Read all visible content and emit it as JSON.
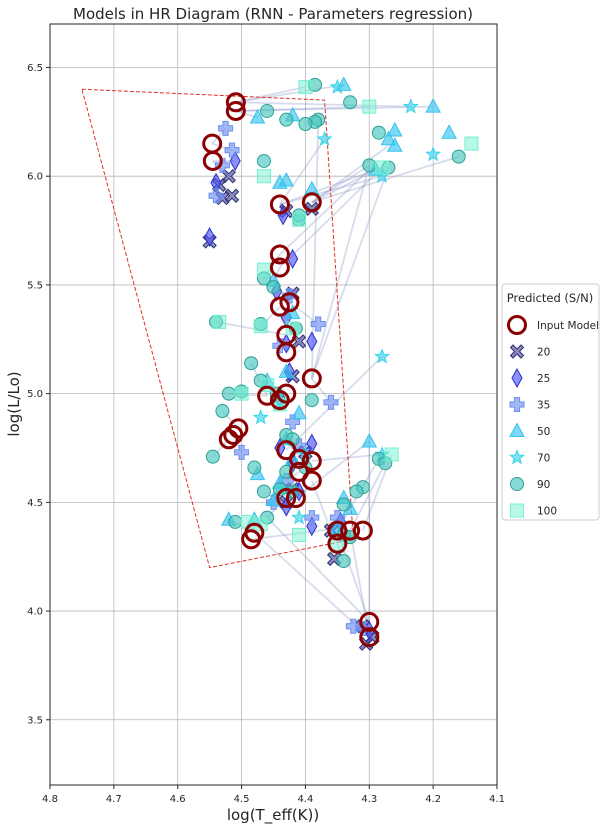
{
  "chart_data": {
    "type": "scatter",
    "title": "Models in HR Diagram (RNN - Parameters regression)",
    "xlabel": "log(T_eff(K))",
    "ylabel": "log(L/Lo)",
    "xlim": [
      4.8,
      4.1
    ],
    "ylim": [
      3.2,
      6.7
    ],
    "xticks": [
      "4.8",
      "4.7",
      "4.6",
      "4.5",
      "4.4",
      "4.3",
      "4.2",
      "4.1"
    ],
    "xtick_values": [
      4.8,
      4.7,
      4.6,
      4.5,
      4.4,
      4.3,
      4.2,
      4.1
    ],
    "yticks": [
      "3.5",
      "4.0",
      "4.5",
      "5.0",
      "5.5",
      "6.0",
      "6.5"
    ],
    "ytick_values": [
      3.5,
      4.0,
      4.5,
      5.0,
      5.5,
      6.0,
      6.5
    ],
    "grid": true,
    "legend": {
      "title": "Predicted (S/N)",
      "placement": "right, outside",
      "entries": [
        "Input Model",
        "20",
        "25",
        "35",
        "50",
        "70",
        "90",
        "100"
      ]
    },
    "boundary_polygon": [
      [
        4.75,
        6.4
      ],
      [
        4.37,
        6.35
      ],
      [
        4.325,
        4.33
      ],
      [
        4.55,
        4.2
      ]
    ],
    "input_models": [
      [
        4.509,
        6.34
      ],
      [
        4.509,
        6.3
      ],
      [
        4.546,
        6.15
      ],
      [
        4.545,
        6.07
      ],
      [
        4.44,
        5.87
      ],
      [
        4.39,
        5.88
      ],
      [
        4.44,
        5.64
      ],
      [
        4.44,
        5.58
      ],
      [
        4.425,
        5.42
      ],
      [
        4.44,
        5.4
      ],
      [
        4.43,
        5.27
      ],
      [
        4.43,
        5.19
      ],
      [
        4.39,
        5.07
      ],
      [
        4.46,
        4.99
      ],
      [
        4.43,
        5.0
      ],
      [
        4.44,
        4.97
      ],
      [
        4.505,
        4.84
      ],
      [
        4.513,
        4.81
      ],
      [
        4.52,
        4.79
      ],
      [
        4.43,
        4.74
      ],
      [
        4.41,
        4.7
      ],
      [
        4.39,
        4.69
      ],
      [
        4.41,
        4.64
      ],
      [
        4.39,
        4.6
      ],
      [
        4.43,
        4.52
      ],
      [
        4.415,
        4.52
      ],
      [
        4.48,
        4.36
      ],
      [
        4.485,
        4.33
      ],
      [
        4.35,
        4.37
      ],
      [
        4.33,
        4.37
      ],
      [
        4.31,
        4.37
      ],
      [
        4.35,
        4.31
      ],
      [
        4.3,
        3.95
      ],
      [
        4.3,
        3.88
      ]
    ],
    "series": [
      {
        "name": "20",
        "points": [
          [
            4.52,
            6.0
          ],
          [
            4.535,
            5.96
          ],
          [
            4.515,
            5.91
          ],
          [
            4.53,
            5.9
          ],
          [
            4.55,
            5.7
          ],
          [
            4.43,
            5.84
          ],
          [
            4.39,
            5.85
          ],
          [
            4.42,
            5.46
          ],
          [
            4.41,
            5.24
          ],
          [
            4.42,
            5.08
          ],
          [
            4.4,
            4.73
          ],
          [
            4.42,
            4.56
          ],
          [
            4.43,
            4.5
          ],
          [
            4.36,
            4.37
          ],
          [
            4.355,
            4.24
          ],
          [
            4.31,
            3.93
          ],
          [
            4.305,
            3.85
          ],
          [
            4.295,
            3.88
          ]
        ]
      },
      {
        "name": "25",
        "points": [
          [
            4.54,
            5.97
          ],
          [
            4.51,
            6.07
          ],
          [
            4.435,
            5.82
          ],
          [
            4.55,
            5.72
          ],
          [
            4.42,
            5.62
          ],
          [
            4.445,
            5.47
          ],
          [
            4.43,
            5.35
          ],
          [
            4.43,
            5.23
          ],
          [
            4.39,
            5.24
          ],
          [
            4.425,
            5.1
          ],
          [
            4.44,
            4.98
          ],
          [
            4.44,
            4.75
          ],
          [
            4.42,
            4.68
          ],
          [
            4.39,
            4.77
          ],
          [
            4.41,
            4.55
          ],
          [
            4.43,
            4.48
          ],
          [
            4.39,
            4.39
          ],
          [
            4.345,
            4.41
          ],
          [
            4.3,
            3.91
          ]
        ]
      },
      {
        "name": "35",
        "points": [
          [
            4.525,
            6.22
          ],
          [
            4.515,
            6.12
          ],
          [
            4.53,
            6.05
          ],
          [
            4.54,
            5.91
          ],
          [
            4.425,
            5.45
          ],
          [
            4.38,
            5.32
          ],
          [
            4.44,
            5.22
          ],
          [
            4.36,
            4.96
          ],
          [
            4.42,
            4.87
          ],
          [
            4.41,
            4.76
          ],
          [
            4.5,
            4.73
          ],
          [
            4.43,
            4.6
          ],
          [
            4.45,
            4.5
          ],
          [
            4.39,
            4.43
          ],
          [
            4.35,
            4.43
          ],
          [
            4.325,
            3.93
          ],
          [
            4.31,
            3.92
          ]
        ]
      },
      {
        "name": "50",
        "points": [
          [
            4.34,
            6.42
          ],
          [
            4.475,
            6.27
          ],
          [
            4.42,
            6.28
          ],
          [
            4.26,
            6.21
          ],
          [
            4.175,
            6.2
          ],
          [
            4.2,
            6.32
          ],
          [
            4.27,
            6.17
          ],
          [
            4.26,
            6.14
          ],
          [
            4.29,
            6.03
          ],
          [
            4.44,
            5.97
          ],
          [
            4.43,
            5.98
          ],
          [
            4.39,
            5.94
          ],
          [
            4.45,
            5.52
          ],
          [
            4.42,
            5.37
          ],
          [
            4.43,
            5.1
          ],
          [
            4.46,
            5.06
          ],
          [
            4.41,
            4.91
          ],
          [
            4.43,
            4.79
          ],
          [
            4.42,
            4.7
          ],
          [
            4.3,
            4.78
          ],
          [
            4.475,
            4.63
          ],
          [
            4.44,
            4.59
          ],
          [
            4.45,
            4.51
          ],
          [
            4.48,
            4.42
          ],
          [
            4.52,
            4.42
          ],
          [
            4.34,
            4.52
          ],
          [
            4.33,
            4.47
          ],
          [
            4.35,
            4.38
          ]
        ]
      },
      {
        "name": "70",
        "points": [
          [
            4.35,
            6.41
          ],
          [
            4.235,
            6.32
          ],
          [
            4.2,
            6.1
          ],
          [
            4.37,
            6.17
          ],
          [
            4.28,
            6.0
          ],
          [
            4.28,
            5.17
          ],
          [
            4.28,
            4.72
          ],
          [
            4.44,
            4.96
          ],
          [
            4.47,
            4.89
          ],
          [
            4.4,
            4.72
          ],
          [
            4.44,
            4.56
          ],
          [
            4.41,
            4.43
          ]
        ]
      },
      {
        "name": "90",
        "points": [
          [
            4.385,
            6.42
          ],
          [
            4.33,
            6.34
          ],
          [
            4.46,
            6.3
          ],
          [
            4.38,
            6.26
          ],
          [
            4.385,
            6.25
          ],
          [
            4.43,
            6.26
          ],
          [
            4.4,
            6.24
          ],
          [
            4.285,
            6.2
          ],
          [
            4.3,
            6.05
          ],
          [
            4.27,
            6.04
          ],
          [
            4.16,
            6.09
          ],
          [
            4.465,
            6.07
          ],
          [
            4.41,
            5.8
          ],
          [
            4.41,
            5.82
          ],
          [
            4.465,
            5.53
          ],
          [
            4.45,
            5.49
          ],
          [
            4.54,
            5.33
          ],
          [
            4.47,
            5.32
          ],
          [
            4.415,
            5.3
          ],
          [
            4.485,
            5.14
          ],
          [
            4.47,
            5.06
          ],
          [
            4.52,
            5.0
          ],
          [
            4.5,
            5.01
          ],
          [
            4.445,
            5.0
          ],
          [
            4.39,
            4.97
          ],
          [
            4.53,
            4.92
          ],
          [
            4.43,
            4.81
          ],
          [
            4.42,
            4.79
          ],
          [
            4.545,
            4.71
          ],
          [
            4.48,
            4.66
          ],
          [
            4.43,
            4.64
          ],
          [
            4.4,
            4.66
          ],
          [
            4.285,
            4.7
          ],
          [
            4.275,
            4.68
          ],
          [
            4.44,
            4.56
          ],
          [
            4.465,
            4.55
          ],
          [
            4.42,
            4.55
          ],
          [
            4.46,
            4.43
          ],
          [
            4.51,
            4.41
          ],
          [
            4.31,
            4.57
          ],
          [
            4.32,
            4.55
          ],
          [
            4.34,
            4.49
          ],
          [
            4.34,
            4.35
          ],
          [
            4.33,
            4.34
          ],
          [
            4.34,
            4.23
          ]
        ]
      },
      {
        "name": "100",
        "points": [
          [
            4.4,
            6.41
          ],
          [
            4.3,
            6.32
          ],
          [
            4.14,
            6.15
          ],
          [
            4.465,
            6.0
          ],
          [
            4.28,
            6.04
          ],
          [
            4.41,
            5.8
          ],
          [
            4.465,
            5.57
          ],
          [
            4.535,
            5.33
          ],
          [
            4.47,
            5.31
          ],
          [
            4.42,
            5.3
          ],
          [
            4.46,
            5.04
          ],
          [
            4.5,
            5.0
          ],
          [
            4.44,
            4.95
          ],
          [
            4.265,
            4.72
          ],
          [
            4.49,
            4.41
          ],
          [
            4.47,
            4.4
          ],
          [
            4.41,
            4.35
          ],
          [
            4.35,
            4.3
          ]
        ]
      }
    ],
    "links": [
      [
        [
          4.509,
          6.34
        ],
        [
          4.4,
          6.41
        ]
      ],
      [
        [
          4.509,
          6.34
        ],
        [
          4.34,
          6.42
        ]
      ],
      [
        [
          4.509,
          6.34
        ],
        [
          4.235,
          6.32
        ]
      ],
      [
        [
          4.509,
          6.3
        ],
        [
          4.475,
          6.27
        ]
      ],
      [
        [
          4.509,
          6.3
        ],
        [
          4.2,
          6.32
        ]
      ],
      [
        [
          4.509,
          6.3
        ],
        [
          4.3,
          6.32
        ]
      ],
      [
        [
          4.546,
          6.15
        ],
        [
          4.515,
          6.12
        ]
      ],
      [
        [
          4.546,
          6.15
        ],
        [
          4.525,
          6.22
        ]
      ],
      [
        [
          4.545,
          6.07
        ],
        [
          4.51,
          6.07
        ]
      ],
      [
        [
          4.545,
          6.07
        ],
        [
          4.52,
          6.0
        ]
      ],
      [
        [
          4.44,
          5.87
        ],
        [
          4.43,
          5.84
        ]
      ],
      [
        [
          4.44,
          5.87
        ],
        [
          4.28,
          6.0
        ]
      ],
      [
        [
          4.44,
          5.87
        ],
        [
          4.28,
          6.04
        ]
      ],
      [
        [
          4.39,
          5.88
        ],
        [
          4.3,
          6.05
        ]
      ],
      [
        [
          4.39,
          5.88
        ],
        [
          4.27,
          6.14
        ]
      ],
      [
        [
          4.39,
          5.88
        ],
        [
          4.16,
          6.09
        ]
      ],
      [
        [
          4.39,
          5.88
        ],
        [
          4.29,
          6.03
        ]
      ],
      [
        [
          4.44,
          5.87
        ],
        [
          4.37,
          6.17
        ]
      ],
      [
        [
          4.44,
          5.64
        ],
        [
          4.465,
          5.53
        ]
      ],
      [
        [
          4.44,
          5.64
        ],
        [
          4.3,
          6.03
        ]
      ],
      [
        [
          4.44,
          5.58
        ],
        [
          4.45,
          5.52
        ]
      ],
      [
        [
          4.44,
          5.58
        ],
        [
          4.28,
          6.04
        ]
      ],
      [
        [
          4.425,
          5.42
        ],
        [
          4.38,
          5.32
        ]
      ],
      [
        [
          4.44,
          5.4
        ],
        [
          4.47,
          5.31
        ]
      ],
      [
        [
          4.43,
          5.27
        ],
        [
          4.54,
          5.33
        ]
      ],
      [
        [
          4.43,
          5.19
        ],
        [
          4.41,
          5.24
        ]
      ],
      [
        [
          4.39,
          5.07
        ],
        [
          4.38,
          6.25
        ]
      ],
      [
        [
          4.39,
          5.07
        ],
        [
          4.3,
          6.05
        ]
      ],
      [
        [
          4.39,
          5.07
        ],
        [
          4.36,
          4.96
        ]
      ],
      [
        [
          4.39,
          5.07
        ],
        [
          4.27,
          6.04
        ]
      ],
      [
        [
          4.46,
          4.99
        ],
        [
          4.485,
          5.14
        ]
      ],
      [
        [
          4.46,
          4.99
        ],
        [
          4.52,
          5.0
        ]
      ],
      [
        [
          4.43,
          5.0
        ],
        [
          4.44,
          4.95
        ]
      ],
      [
        [
          4.505,
          4.84
        ],
        [
          4.53,
          4.92
        ]
      ],
      [
        [
          4.52,
          4.79
        ],
        [
          4.545,
          4.71
        ]
      ],
      [
        [
          4.513,
          4.81
        ],
        [
          4.5,
          4.73
        ]
      ],
      [
        [
          4.43,
          4.74
        ],
        [
          4.28,
          5.17
        ]
      ],
      [
        [
          4.41,
          4.7
        ],
        [
          4.42,
          4.79
        ]
      ],
      [
        [
          4.39,
          4.69
        ],
        [
          4.28,
          4.72
        ]
      ],
      [
        [
          4.41,
          4.64
        ],
        [
          4.43,
          4.6
        ]
      ],
      [
        [
          4.39,
          4.6
        ],
        [
          4.36,
          4.37
        ]
      ],
      [
        [
          4.43,
          4.52
        ],
        [
          4.46,
          4.43
        ]
      ],
      [
        [
          4.415,
          4.52
        ],
        [
          4.3,
          4.78
        ]
      ],
      [
        [
          4.48,
          4.36
        ],
        [
          4.52,
          4.42
        ]
      ],
      [
        [
          4.485,
          4.33
        ],
        [
          4.35,
          4.38
        ]
      ],
      [
        [
          4.35,
          4.37
        ],
        [
          4.285,
          4.7
        ]
      ],
      [
        [
          4.33,
          4.37
        ],
        [
          4.275,
          4.68
        ]
      ],
      [
        [
          4.31,
          4.37
        ],
        [
          4.265,
          4.72
        ]
      ],
      [
        [
          4.35,
          4.31
        ],
        [
          4.34,
          4.23
        ]
      ],
      [
        [
          4.3,
          3.95
        ],
        [
          4.35,
          4.37
        ]
      ],
      [
        [
          4.3,
          3.95
        ],
        [
          4.3,
          4.78
        ]
      ],
      [
        [
          4.3,
          3.88
        ],
        [
          4.48,
          4.36
        ]
      ],
      [
        [
          4.3,
          3.88
        ],
        [
          4.33,
          4.37
        ]
      ],
      [
        [
          4.3,
          3.95
        ],
        [
          4.46,
          4.43
        ]
      ]
    ]
  },
  "colors": {
    "input_model": "#8b0000",
    "20": "#4b4b9e",
    "25": "#4f55f2",
    "35": "#6f8ff0",
    "50": "#35c3ee",
    "70": "#38d2ea",
    "90": "#47c7bd",
    "100": "#73f0cf",
    "boundary": "#e0302a",
    "link": "#8a9cc8",
    "grid": "#b8b8b8"
  }
}
